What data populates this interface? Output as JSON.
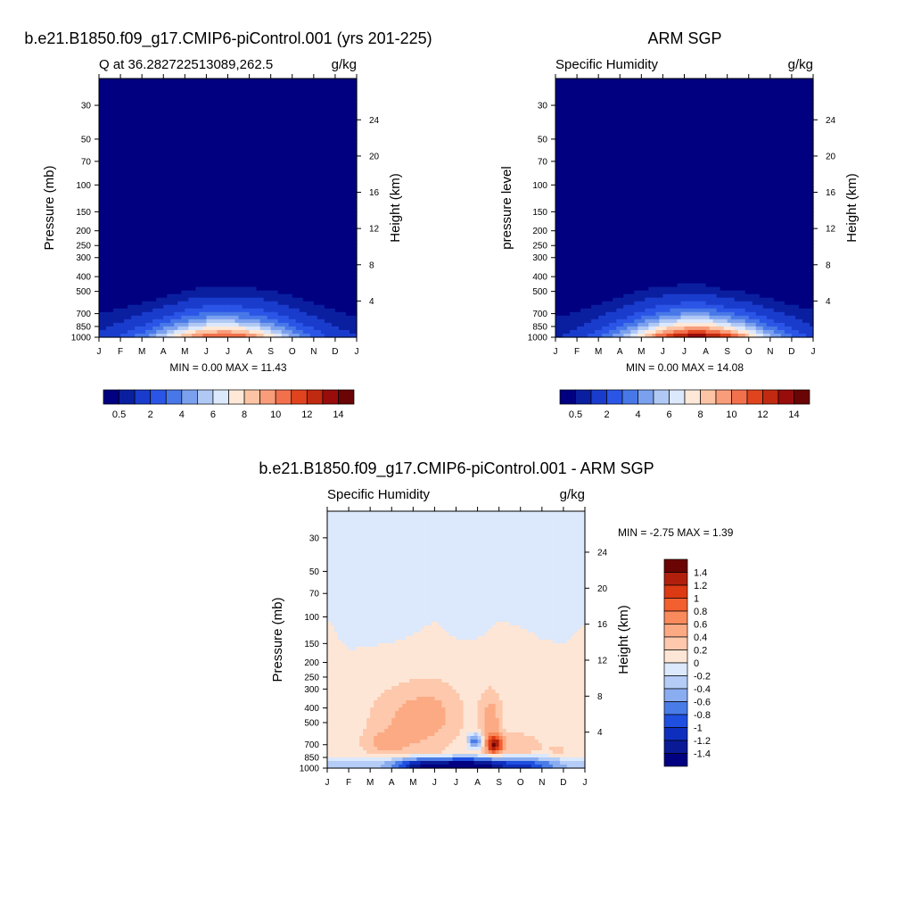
{
  "chart_data": [
    {
      "type": "heatmap",
      "id": "model",
      "title": "b.e21.B1850.f09_g17.CMIP6-piControl.001 (yrs 201-225)",
      "left_label": "Q at 36.282722513089,262.5",
      "units": "g/kg",
      "ylabel": "Pressure (mb)",
      "ylabel_right": "Height (km)",
      "minmax": "MIN =   0.00 MAX =  11.43",
      "x_ticks": [
        "J",
        "F",
        "M",
        "A",
        "M",
        "J",
        "J",
        "A",
        "S",
        "O",
        "N",
        "D",
        "J"
      ],
      "p_ticks": [
        30,
        50,
        70,
        100,
        150,
        200,
        250,
        300,
        400,
        500,
        700,
        850,
        1000
      ],
      "z_ticks": [
        24,
        20,
        16,
        12,
        8,
        4
      ],
      "ylim_mb": [
        20,
        1000
      ],
      "peak_month": 5.8,
      "peak_value": 11.43,
      "moisture_top_mb": [
        520,
        515,
        500,
        470,
        430,
        400,
        410,
        410,
        420,
        450,
        490,
        515,
        520
      ],
      "colorbar": {
        "labels": [
          "0.5",
          "2",
          "4",
          "6",
          "8",
          "10",
          "12",
          "14"
        ],
        "levels": [
          0.5,
          1,
          2,
          3,
          4,
          5,
          6,
          7,
          8,
          9,
          10,
          11,
          12,
          13,
          14
        ],
        "colors": [
          "#000080",
          "#0a1fa0",
          "#1a3ccc",
          "#2a55e6",
          "#4878e8",
          "#7aa0ee",
          "#b0c8f4",
          "#dce8fb",
          "#ffe8d8",
          "#fcc4a4",
          "#f89c7a",
          "#f2704c",
          "#e0441e",
          "#c02a10",
          "#980c0c",
          "#6b0404"
        ]
      }
    },
    {
      "type": "heatmap",
      "id": "obs",
      "title": "ARM SGP",
      "left_label": "Specific Humidity",
      "units": "g/kg",
      "ylabel": "pressure level",
      "ylabel_right": "Height (km)",
      "minmax": "MIN =   0.00 MAX =  14.08",
      "x_ticks": [
        "J",
        "F",
        "M",
        "A",
        "M",
        "J",
        "J",
        "A",
        "S",
        "O",
        "N",
        "D",
        "J"
      ],
      "p_ticks": [
        30,
        50,
        70,
        100,
        150,
        200,
        250,
        300,
        400,
        500,
        700,
        850,
        1000
      ],
      "z_ticks": [
        24,
        20,
        16,
        12,
        8,
        4
      ],
      "ylim_mb": [
        20,
        1000
      ],
      "peak_month": 6.6,
      "peak_value": 14.08,
      "moisture_top_mb": [
        515,
        510,
        495,
        460,
        420,
        400,
        395,
        400,
        435,
        445,
        480,
        510,
        515
      ],
      "colorbar": {
        "labels": [
          "0.5",
          "2",
          "4",
          "6",
          "8",
          "10",
          "12",
          "14"
        ],
        "levels": [
          0.5,
          1,
          2,
          3,
          4,
          5,
          6,
          7,
          8,
          9,
          10,
          11,
          12,
          13,
          14
        ],
        "colors": [
          "#000080",
          "#0a1fa0",
          "#1a3ccc",
          "#2a55e6",
          "#4878e8",
          "#7aa0ee",
          "#b0c8f4",
          "#dce8fb",
          "#ffe8d8",
          "#fcc4a4",
          "#f89c7a",
          "#f2704c",
          "#e0441e",
          "#c02a10",
          "#980c0c",
          "#6b0404"
        ]
      }
    },
    {
      "type": "heatmap",
      "id": "diff",
      "title": "b.e21.B1850.f09_g17.CMIP6-piControl.001 - ARM SGP",
      "left_label": "Specific Humidity",
      "units": "g/kg",
      "ylabel": "Pressure (mb)",
      "ylabel_right": "Height (km)",
      "minmax": "MIN =  -2.75 MAX =   1.39",
      "x_ticks": [
        "J",
        "F",
        "M",
        "A",
        "M",
        "J",
        "J",
        "A",
        "S",
        "O",
        "N",
        "D",
        "J"
      ],
      "p_ticks": [
        30,
        50,
        70,
        100,
        150,
        200,
        250,
        300,
        400,
        500,
        700,
        850,
        1000
      ],
      "z_ticks": [
        24,
        20,
        16,
        12,
        8,
        4
      ],
      "ylim_mb": [
        20,
        1000
      ],
      "zero_contour_mb": [
        100,
        165,
        155,
        150,
        130,
        105,
        140,
        140,
        105,
        115,
        140,
        150,
        110
      ],
      "colorbar": {
        "labels": [
          "1.4",
          "1.2",
          "1",
          "0.8",
          "0.6",
          "0.4",
          "0.2",
          "0",
          "-0.2",
          "-0.4",
          "-0.6",
          "-0.8",
          "-1",
          "-1.2",
          "-1.4"
        ],
        "colors": [
          "#6b0404",
          "#b0200c",
          "#dc3a12",
          "#f26030",
          "#f88a5c",
          "#fcaa84",
          "#fdc8ac",
          "#fee6d6",
          "#dce8fb",
          "#b4ccf6",
          "#8aacf0",
          "#4a7ce8",
          "#1f4fe0",
          "#0e2fbe",
          "#0a1a96",
          "#000080"
        ]
      }
    }
  ]
}
